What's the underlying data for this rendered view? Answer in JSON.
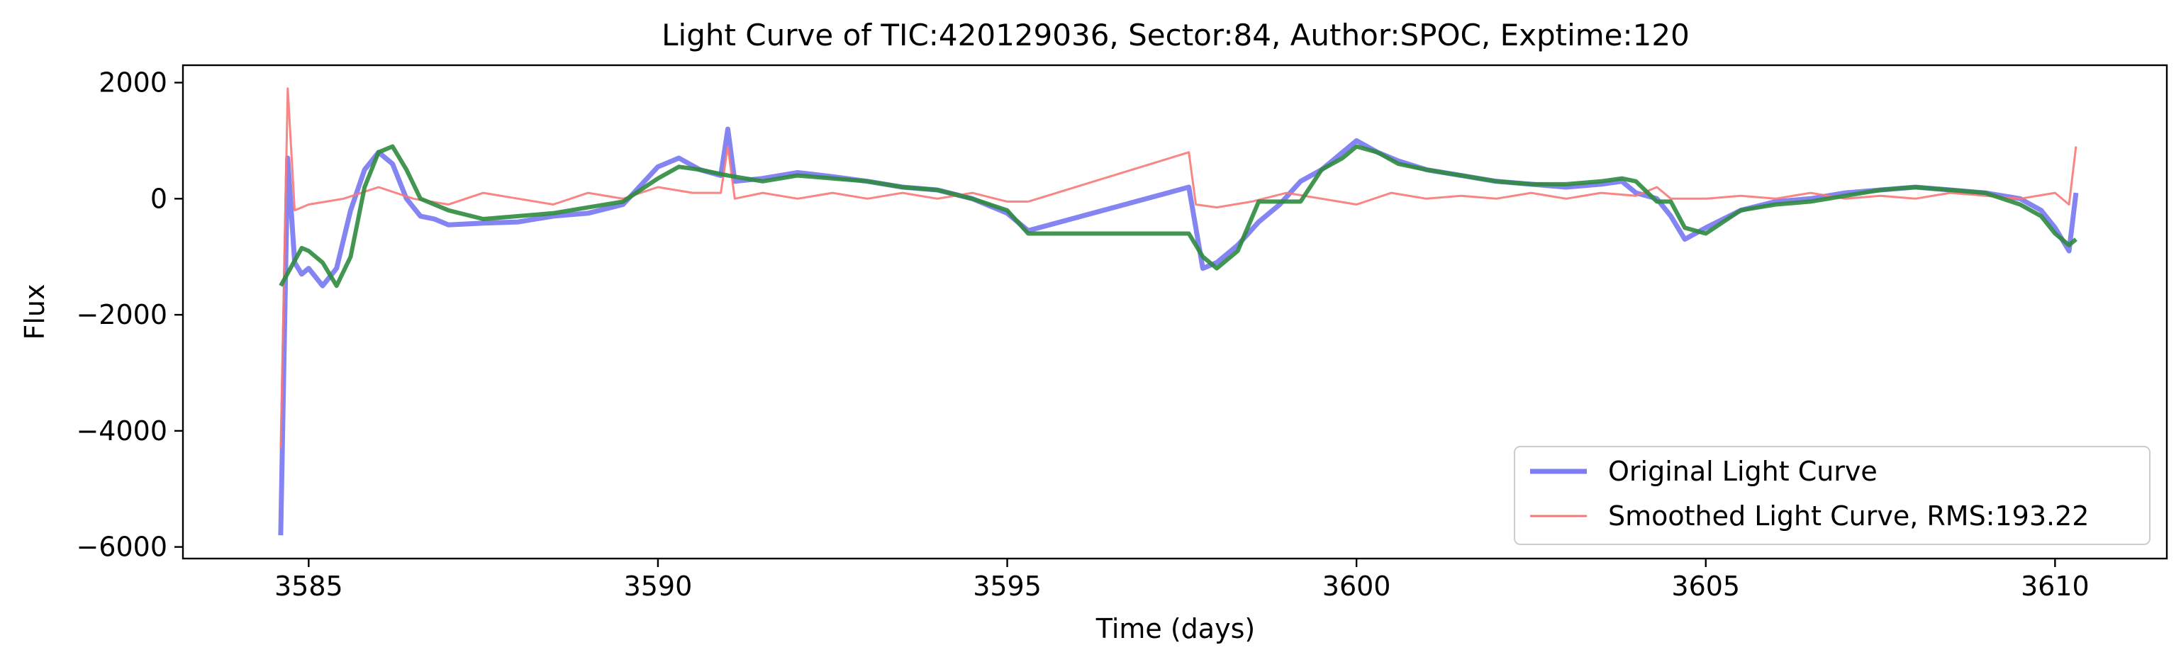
{
  "chart_data": {
    "type": "line",
    "title": "Light Curve of TIC:420129036, Sector:84, Author:SPOC, Exptime:120",
    "xlabel": "Time (days)",
    "ylabel": "Flux",
    "xlim": [
      3583.2,
      3611.6
    ],
    "ylim": [
      -6200,
      2300
    ],
    "x_ticks": [
      3585,
      3590,
      3595,
      3600,
      3605,
      3610
    ],
    "y_ticks": [
      2000,
      0,
      -2000,
      -4000,
      -6000
    ],
    "x_tick_labels": [
      "3585",
      "3590",
      "3595",
      "3600",
      "3605",
      "3610"
    ],
    "y_tick_labels": [
      "2000",
      "0",
      "−2000",
      "−4000",
      "−6000"
    ],
    "grid": false,
    "legend_position": "lower-right",
    "series": [
      {
        "name": "Original Light Curve",
        "color": "#6f6ff0",
        "x": [
          3584.6,
          3584.7,
          3584.8,
          3584.9,
          3585.0,
          3585.2,
          3585.4,
          3585.6,
          3585.8,
          3586.0,
          3586.2,
          3586.4,
          3586.6,
          3586.8,
          3587.0,
          3587.5,
          3588.0,
          3588.5,
          3589.0,
          3589.5,
          3590.0,
          3590.3,
          3590.6,
          3590.9,
          3591.0,
          3591.1,
          3591.5,
          3592.0,
          3592.5,
          3593.0,
          3593.5,
          3594.0,
          3594.5,
          3595.0,
          3595.3,
          3597.6,
          3597.8,
          3598.0,
          3598.3,
          3598.6,
          3598.9,
          3599.2,
          3599.5,
          3599.8,
          3600.0,
          3600.3,
          3600.6,
          3601.0,
          3601.5,
          3602.0,
          3602.5,
          3603.0,
          3603.5,
          3603.8,
          3604.0,
          3604.3,
          3604.5,
          3604.7,
          3605.0,
          3605.5,
          3606.0,
          3606.5,
          3607.0,
          3607.5,
          3608.0,
          3608.5,
          3609.0,
          3609.5,
          3609.8,
          3610.0,
          3610.2,
          3610.3
        ],
        "y": [
          -5800,
          700,
          -1100,
          -1300,
          -1200,
          -1500,
          -1200,
          -200,
          500,
          800,
          600,
          0,
          -300,
          -350,
          -450,
          -420,
          -400,
          -300,
          -250,
          -100,
          550,
          700,
          500,
          400,
          1200,
          300,
          350,
          450,
          380,
          300,
          200,
          150,
          0,
          -250,
          -550,
          200,
          -1200,
          -1100,
          -800,
          -400,
          -100,
          300,
          500,
          800,
          1000,
          800,
          650,
          500,
          400,
          300,
          250,
          200,
          250,
          300,
          100,
          0,
          -300,
          -700,
          -500,
          -200,
          -50,
          0,
          100,
          150,
          200,
          150,
          100,
          0,
          -200,
          -500,
          -900,
          100
        ]
      },
      {
        "name": "Smoothed Light Curve, RMS:193.22",
        "color": "#f87878",
        "x": [
          3584.6,
          3584.7,
          3584.8,
          3585.0,
          3585.5,
          3586.0,
          3586.5,
          3587.0,
          3587.5,
          3588.0,
          3588.5,
          3589.0,
          3589.5,
          3590.0,
          3590.5,
          3590.9,
          3591.0,
          3591.1,
          3591.5,
          3592.0,
          3592.5,
          3593.0,
          3593.5,
          3594.0,
          3594.5,
          3595.0,
          3595.3,
          3597.6,
          3597.7,
          3598.0,
          3598.5,
          3599.0,
          3599.5,
          3600.0,
          3600.5,
          3601.0,
          3601.5,
          3602.0,
          3602.5,
          3603.0,
          3603.5,
          3604.0,
          3604.3,
          3604.5,
          3605.0,
          3605.5,
          3606.0,
          3606.5,
          3607.0,
          3607.5,
          3608.0,
          3608.5,
          3609.0,
          3609.5,
          3610.0,
          3610.2,
          3610.3
        ],
        "y": [
          -4300,
          1900,
          -200,
          -100,
          0,
          200,
          0,
          -100,
          100,
          0,
          -100,
          100,
          0,
          200,
          100,
          100,
          900,
          0,
          100,
          0,
          100,
          0,
          100,
          0,
          100,
          -50,
          -50,
          800,
          -100,
          -150,
          -50,
          100,
          0,
          -100,
          100,
          0,
          50,
          0,
          100,
          0,
          100,
          50,
          200,
          0,
          0,
          50,
          0,
          100,
          0,
          50,
          0,
          100,
          50,
          0,
          100,
          -100,
          900
        ]
      },
      {
        "color": "#2e8b3e",
        "x": [
          3584.6,
          3584.9,
          3585.0,
          3585.2,
          3585.4,
          3585.6,
          3585.8,
          3586.0,
          3586.2,
          3586.4,
          3586.6,
          3587.0,
          3587.5,
          3588.0,
          3588.5,
          3589.0,
          3589.5,
          3590.0,
          3590.3,
          3590.6,
          3591.0,
          3591.5,
          3592.0,
          3592.5,
          3593.0,
          3593.5,
          3594.0,
          3594.5,
          3595.0,
          3595.3,
          3597.6,
          3597.8,
          3598.0,
          3598.3,
          3598.6,
          3599.2,
          3599.5,
          3599.8,
          3600.0,
          3600.3,
          3600.6,
          3601.0,
          3601.5,
          3602.0,
          3602.5,
          3603.0,
          3603.5,
          3603.8,
          3604.0,
          3604.3,
          3604.5,
          3604.7,
          3605.0,
          3605.5,
          3606.0,
          3606.5,
          3607.0,
          3607.5,
          3608.0,
          3608.5,
          3609.0,
          3609.5,
          3609.8,
          3610.0,
          3610.2,
          3610.3
        ],
        "y": [
          -1500,
          -850,
          -900,
          -1100,
          -1500,
          -1000,
          200,
          800,
          900,
          500,
          0,
          -200,
          -350,
          -300,
          -250,
          -150,
          -50,
          350,
          550,
          500,
          400,
          300,
          400,
          350,
          300,
          200,
          150,
          0,
          -200,
          -600,
          -600,
          -1000,
          -1200,
          -900,
          -50,
          -50,
          500,
          700,
          900,
          800,
          600,
          500,
          400,
          300,
          250,
          250,
          300,
          350,
          300,
          -50,
          -50,
          -500,
          -600,
          -200,
          -100,
          -50,
          50,
          150,
          200,
          150,
          100,
          -100,
          -300,
          -600,
          -800,
          -700
        ]
      }
    ]
  }
}
